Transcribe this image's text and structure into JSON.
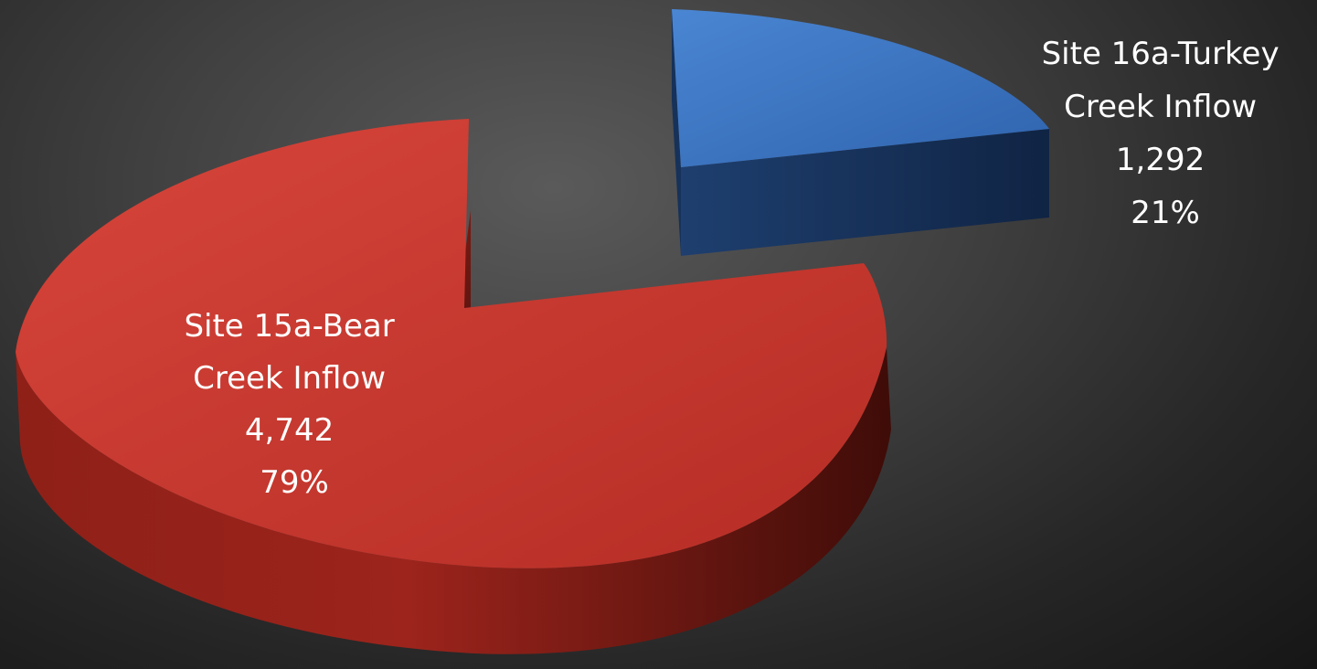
{
  "chart_data": {
    "type": "pie",
    "style": "3d-exploded",
    "categories": [
      "Site 16a-Turkey Creek Inflow",
      "Site 15a-Bear Creek Inflow"
    ],
    "values": [
      1292,
      4742
    ],
    "percent": [
      21,
      79
    ],
    "colors": [
      "#3a76c4",
      "#c8392f"
    ],
    "slices": [
      {
        "label_lines": [
          "Site 16a-Turkey",
          "Creek Inflow"
        ],
        "value_label": "1,292",
        "percent_label": "21%"
      },
      {
        "label_lines": [
          "Site 15a-Bear",
          "Creek Inflow"
        ],
        "value_label": "4,742",
        "percent_label": "79%"
      }
    ],
    "legend": "none",
    "grid": false
  }
}
